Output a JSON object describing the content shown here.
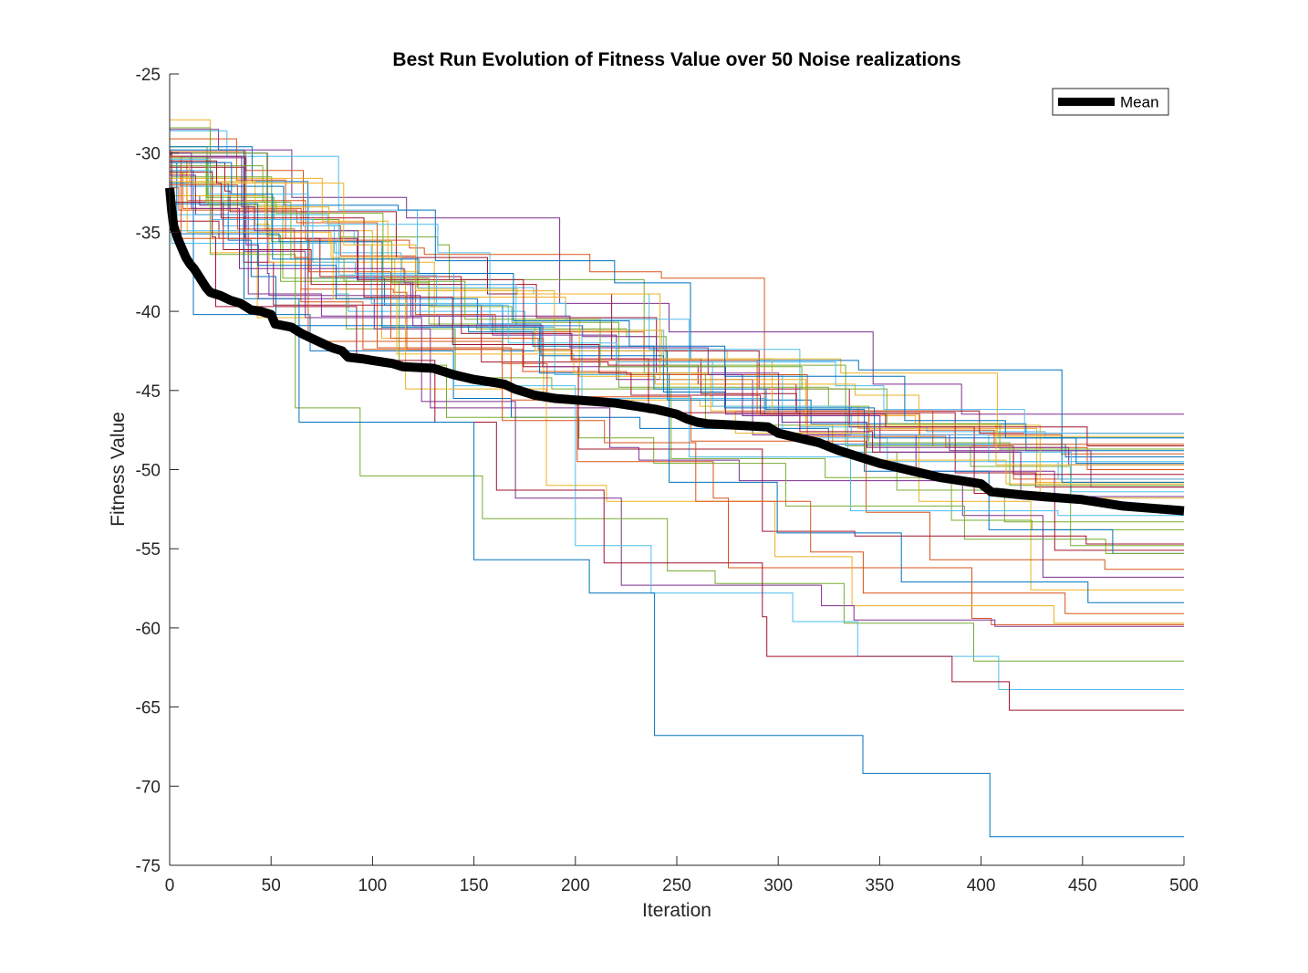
{
  "chart_data": {
    "type": "line",
    "title": "Best Run Evolution of Fitness Value over 50 Noise realizations",
    "xlabel": "Iteration",
    "ylabel": "Fitness Value",
    "xlim": [
      0,
      500
    ],
    "ylim": [
      -75,
      -25
    ],
    "xticks": [
      0,
      50,
      100,
      150,
      200,
      250,
      300,
      350,
      400,
      450,
      500
    ],
    "yticks": [
      -25,
      -30,
      -35,
      -40,
      -45,
      -50,
      -55,
      -60,
      -65,
      -70,
      -75
    ],
    "grid": false,
    "legend": {
      "position": "top-right",
      "entries": [
        "Mean"
      ]
    },
    "palette": [
      "#0072BD",
      "#D95319",
      "#EDB120",
      "#7E2F8E",
      "#77AC30",
      "#4DBEEE",
      "#A2142F"
    ],
    "mean_series": {
      "name": "Mean",
      "color": "#000000",
      "points": [
        [
          0,
          -32.2
        ],
        [
          1,
          -33.6
        ],
        [
          2,
          -34.6
        ],
        [
          4,
          -35.4
        ],
        [
          6,
          -36.0
        ],
        [
          8,
          -36.6
        ],
        [
          10,
          -37.0
        ],
        [
          12,
          -37.3
        ],
        [
          15,
          -37.9
        ],
        [
          18,
          -38.5
        ],
        [
          20,
          -38.8
        ],
        [
          25,
          -39.0
        ],
        [
          30,
          -39.3
        ],
        [
          35,
          -39.5
        ],
        [
          40,
          -39.9
        ],
        [
          45,
          -40.0
        ],
        [
          50,
          -40.2
        ],
        [
          52,
          -40.8
        ],
        [
          60,
          -41.0
        ],
        [
          65,
          -41.4
        ],
        [
          70,
          -41.7
        ],
        [
          75,
          -42.0
        ],
        [
          80,
          -42.3
        ],
        [
          85,
          -42.5
        ],
        [
          88,
          -42.9
        ],
        [
          95,
          -43.0
        ],
        [
          100,
          -43.1
        ],
        [
          110,
          -43.3
        ],
        [
          115,
          -43.5
        ],
        [
          130,
          -43.6
        ],
        [
          135,
          -43.8
        ],
        [
          140,
          -44.0
        ],
        [
          150,
          -44.3
        ],
        [
          160,
          -44.5
        ],
        [
          165,
          -44.6
        ],
        [
          170,
          -44.9
        ],
        [
          180,
          -45.3
        ],
        [
          190,
          -45.5
        ],
        [
          200,
          -45.6
        ],
        [
          210,
          -45.7
        ],
        [
          220,
          -45.8
        ],
        [
          230,
          -46.0
        ],
        [
          240,
          -46.2
        ],
        [
          250,
          -46.5
        ],
        [
          255,
          -46.8
        ],
        [
          260,
          -47.0
        ],
        [
          265,
          -47.1
        ],
        [
          280,
          -47.2
        ],
        [
          295,
          -47.3
        ],
        [
          300,
          -47.7
        ],
        [
          310,
          -48.0
        ],
        [
          320,
          -48.3
        ],
        [
          330,
          -48.8
        ],
        [
          340,
          -49.2
        ],
        [
          350,
          -49.6
        ],
        [
          360,
          -49.9
        ],
        [
          370,
          -50.2
        ],
        [
          380,
          -50.5
        ],
        [
          390,
          -50.7
        ],
        [
          400,
          -50.9
        ],
        [
          405,
          -51.4
        ],
        [
          420,
          -51.6
        ],
        [
          430,
          -51.7
        ],
        [
          440,
          -51.8
        ],
        [
          450,
          -51.9
        ],
        [
          460,
          -52.1
        ],
        [
          470,
          -52.3
        ],
        [
          480,
          -52.4
        ],
        [
          490,
          -52.5
        ],
        [
          500,
          -52.6
        ]
      ]
    },
    "noise_runs": [
      {
        "values": [
          -31.1,
          -40.2,
          -42.5,
          -45.5,
          -46.7,
          -47.4,
          -48.4,
          -49.2
        ]
      },
      {
        "values": [
          -30.5,
          -33.0,
          -35.5,
          -36.0,
          -36.4,
          -37.5,
          -37.9,
          -46.5,
          -47.8,
          -49.0
        ]
      },
      {
        "values": [
          -27.9,
          -36.3,
          -40.4,
          -41.7,
          -45.6,
          -46.0,
          -47.4,
          -50.8
        ]
      },
      {
        "values": [
          -28.5,
          -29.8,
          -32.8,
          -34.1,
          -39.5,
          -41.3,
          -44.6,
          -46.5
        ]
      },
      {
        "values": [
          -29.6,
          -32.8,
          -34.2,
          -35.3,
          -35.8,
          -38.0,
          -43.9,
          -47.2,
          -48.9,
          -51.3,
          -53.3
        ]
      },
      {
        "values": [
          -28.6,
          -30.2,
          -33.6,
          -38.5,
          -38.9,
          -42.4,
          -47.3,
          -47.6,
          -48.0
        ]
      },
      {
        "values": [
          -30.9,
          -36.9,
          -39.6,
          -43.2,
          -43.4,
          -44.6,
          -46.3,
          -47.7
        ]
      },
      {
        "values": [
          -29.6,
          -31.8,
          -37.9,
          -39.6,
          -42.5,
          -45.6,
          -47.1,
          -48.8
        ]
      },
      {
        "values": [
          -29.9,
          -31.1,
          -34.6,
          -36.5,
          -40.2,
          -41.3,
          -43.1,
          -46.3,
          -48.5,
          -50.6
        ]
      },
      {
        "values": [
          -31.8,
          -34.5,
          -36.9,
          -40.9,
          -42.5,
          -43.0,
          -43.9,
          -47.9
        ]
      },
      {
        "values": [
          -30.0,
          -37.6,
          -39.0,
          -40.3,
          -41.5,
          -44.3,
          -47.8,
          -50.1,
          -51.7
        ]
      },
      {
        "values": [
          -30.6,
          -31.5,
          -35.6,
          -38.2,
          -40.8,
          -41.1,
          -41.6,
          -43.4,
          -48.5,
          -49.8,
          -54.8
        ]
      },
      {
        "values": [
          -32.0,
          -35.7,
          -38.9,
          -40.0,
          -41.0,
          -44.0,
          -48.0,
          -49.5,
          -50.6
        ]
      },
      {
        "values": [
          -31.8,
          -34.3,
          -35.4,
          -37.8,
          -38.3,
          -40.4,
          -42.5,
          -44.9,
          -47.3,
          -51.5,
          -55.1
        ]
      },
      {
        "values": [
          -30.8,
          -32.1,
          -33.3,
          -33.6,
          -36.8,
          -38.2,
          -43.1,
          -43.7,
          -50.8
        ]
      },
      {
        "values": [
          -31.2,
          -33.5,
          -38.6,
          -38.8,
          -42.4,
          -43.8,
          -44.0,
          -47.9,
          -48.6,
          -50.0
        ]
      },
      {
        "values": [
          -31.3,
          -31.6,
          -34.3,
          -36.7,
          -39.1,
          -40.5,
          -44.1,
          -44.6,
          -45.3,
          -52.0,
          -57.6
        ]
      },
      {
        "values": [
          -32.7,
          -33.3,
          -38.9,
          -40.3,
          -40.9,
          -41.6,
          -43.9,
          -47.8,
          -48.8,
          -51.1
        ]
      },
      {
        "values": [
          -30.3,
          -33.3,
          -37.9,
          -41.1,
          -44.2,
          -44.9,
          -49.3,
          -50.5,
          -53.2,
          -53.8
        ]
      },
      {
        "values": [
          -32.1,
          -34.6,
          -36.3,
          -38.3,
          -40.9,
          -45.5,
          -46.5,
          -48.9,
          -51.4
        ]
      },
      {
        "values": [
          -30.6,
          -32.4,
          -33.7,
          -36.6,
          -38.9,
          -43.0,
          -45.2,
          -46.4,
          -50.2,
          -51.1
        ]
      },
      {
        "values": [
          -31.9,
          -35.5,
          -37.8,
          -40.9,
          -41.3,
          -42.2,
          -44.9,
          -46.2,
          -50.1,
          -53.8,
          -55.3
        ]
      },
      {
        "values": [
          -29.1,
          -31.7,
          -35.4,
          -39.4,
          -42.4,
          -43.3,
          -45.4,
          -48.2,
          -52.7,
          -55.7,
          -56.3
        ]
      },
      {
        "values": [
          -32.7,
          -34.9,
          -37.5,
          -38.6,
          -38.9,
          -44.3,
          -47.2,
          -51.8
        ]
      },
      {
        "values": [
          -30.3,
          -35.8,
          -39.2,
          -41.1,
          -46.1,
          -48.6,
          -49.4,
          -50.7,
          -52.9,
          -56.8
        ]
      },
      {
        "values": [
          -30.0,
          -35.2,
          -38.1,
          -43.4,
          -46.7,
          -48.0,
          -49.6,
          -52.3,
          -54.4,
          -55.3
        ]
      },
      {
        "values": [
          -31.8,
          -34.9,
          -35.8,
          -39.5,
          -40.5,
          -49.2,
          -52.6,
          -52.9
        ]
      },
      {
        "values": [
          -29.9,
          -30.2,
          -35.4,
          -38.0,
          -43.5,
          -48.7,
          -53.9,
          -54.2,
          -54.7
        ]
      },
      {
        "values": [
          -30.6,
          -35.1,
          -35.6,
          -41.0,
          -43.9,
          -50.8,
          -54.0,
          -57.1,
          -58.4
        ]
      },
      {
        "values": [
          -32.2,
          -33.6,
          -34.4,
          -42.3,
          -45.6,
          -49.5,
          -51.8,
          -56.2,
          -59.4,
          -59.8
        ]
      },
      {
        "values": [
          -31.6,
          -35.0,
          -36.6,
          -37.4,
          -44.9,
          -51.0,
          -52.0,
          -55.5,
          -58.6,
          -59.7
        ]
      },
      {
        "values": [
          -31.4,
          -33.9,
          -36.2,
          -40.4,
          -45.7,
          -51.8,
          -57.3,
          -58.6,
          -59.5,
          -59.9
        ]
      },
      {
        "values": [
          -28.4,
          -36.4,
          -46.1,
          -50.4,
          -53.1,
          -56.4,
          -57.2,
          -59.7,
          -62.1
        ]
      },
      {
        "values": [
          -31.1,
          -34.2,
          -36.9,
          -37.6,
          -44.7,
          -54.8,
          -57.8,
          -59.6,
          -61.8,
          -63.9
        ]
      },
      {
        "values": [
          -31.2,
          -35.3,
          -39.7,
          -43.1,
          -47.0,
          -51.3,
          -55.9,
          -59.3,
          -61.8,
          -63.4,
          -65.2
        ]
      },
      {
        "values": [
          -29.8,
          -39.2,
          -47.0,
          -55.7,
          -57.8,
          -66.8,
          -69.2,
          -73.2
        ]
      },
      {
        "values": [
          -32.0,
          -34.8,
          -36.6,
          -41.9,
          -46.9,
          -48.3,
          -52.0,
          -55.2,
          -57.8,
          -59.1
        ]
      },
      {
        "values": [
          -31.8,
          -33.4,
          -35.7,
          -39.2,
          -42.7,
          -43.9,
          -46.3,
          -47.7,
          -49.4,
          -50.9
        ]
      },
      {
        "values": [
          -30.2,
          -33.4,
          -34.9,
          -38.1,
          -40.9,
          -43.5,
          -46.5,
          -47.0,
          -48.6,
          -49.7
        ]
      },
      {
        "values": [
          -30.8,
          -33.1,
          -33.8,
          -37.9,
          -39.7,
          -40.7,
          -44.8,
          -46.0,
          -48.3,
          -51.0
        ]
      },
      {
        "values": [
          -31.8,
          -33.9,
          -34.5,
          -36.3,
          -41.2,
          -43.2,
          -46.0,
          -47.8,
          -49.5
        ]
      },
      {
        "values": [
          -30.1,
          -33.1,
          -36.1,
          -38.3,
          -41.4,
          -43.0,
          -46.4,
          -47.6,
          -48.9,
          -50.3
        ]
      },
      {
        "values": [
          -32.6,
          -33.2,
          -37.1,
          -39.2,
          -40.8,
          -42.8,
          -45.1,
          -46.1,
          -48.0,
          -49.6
        ]
      },
      {
        "values": [
          -30.2,
          -35.4,
          -37.5,
          -41.7,
          -42.4,
          -43.1,
          -46.5,
          -47.5,
          -48.4
        ]
      },
      {
        "values": [
          -30.3,
          -31.9,
          -35.8,
          -38.7,
          -41.2,
          -43.0,
          -46.6,
          -47.1,
          -49.7
        ]
      },
      {
        "values": [
          -30.0,
          -33.5,
          -37.3,
          -38.2,
          -40.3,
          -42.3,
          -44.0,
          -46.6,
          -48.9,
          -51.7
        ]
      },
      {
        "values": [
          -30.3,
          -33.1,
          -36.7,
          -38.1,
          -40.5,
          -43.5,
          -44.9,
          -47.1,
          -48.7
        ]
      },
      {
        "values": [
          -30.4,
          -32.6,
          -34.6,
          -37.7,
          -39.6,
          -42.0,
          -43.2,
          -44.7,
          -46.2,
          -47.7
        ]
      },
      {
        "values": [
          -30.5,
          -31.9,
          -34.1,
          -39.1,
          -42.1,
          -43.9,
          -45.3,
          -46.5,
          -47.3,
          -48.5
        ]
      },
      {
        "values": [
          -30.6,
          -32.6,
          -36.7,
          -37.6,
          -40.6,
          -42.2,
          -44.1,
          -46.9,
          -48.0
        ]
      }
    ]
  }
}
